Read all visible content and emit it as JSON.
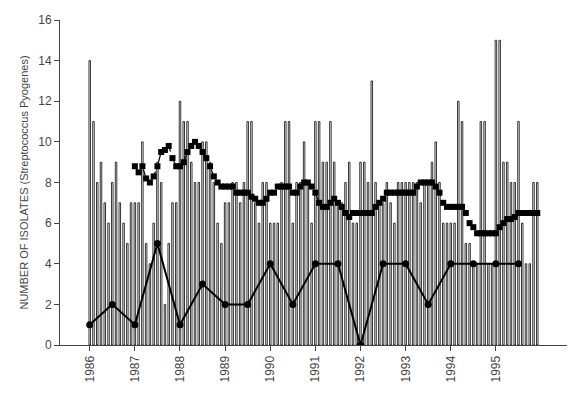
{
  "chart_data": {
    "type": "bar",
    "ylabel": "NUMBER OF ISOLATES (Streptococcus Pyogenes)",
    "categories": [
      "1986",
      null,
      null,
      null,
      null,
      null,
      null,
      null,
      null,
      null,
      null,
      null,
      "1987",
      null,
      null,
      null,
      null,
      null,
      null,
      null,
      null,
      null,
      null,
      null,
      "1988",
      null,
      null,
      null,
      null,
      null,
      null,
      null,
      null,
      null,
      null,
      null,
      "1989",
      null,
      null,
      null,
      null,
      null,
      null,
      null,
      null,
      null,
      null,
      null,
      "1990",
      null,
      null,
      null,
      null,
      null,
      null,
      null,
      null,
      null,
      null,
      null,
      "1991",
      null,
      null,
      null,
      null,
      null,
      null,
      null,
      null,
      null,
      null,
      null,
      "1992",
      null,
      null,
      null,
      null,
      null,
      null,
      null,
      null,
      null,
      null,
      null,
      "1993",
      null,
      null,
      null,
      null,
      null,
      null,
      null,
      null,
      null,
      null,
      null,
      "1994",
      null,
      null,
      null,
      null,
      null,
      null,
      null,
      null,
      null,
      null,
      null,
      "1995",
      null,
      null,
      null,
      null,
      null,
      null,
      null,
      null,
      null,
      null,
      null
    ],
    "series": [
      {
        "type": "bar",
        "color": "white",
        "values": [
          14,
          11,
          8,
          9,
          7,
          6,
          8,
          9,
          7,
          6,
          5,
          7,
          7,
          7,
          10,
          5,
          4,
          6,
          9,
          8,
          2,
          5,
          7,
          7,
          12,
          11,
          11,
          9,
          8,
          8,
          10,
          10,
          9,
          8,
          6,
          5,
          7,
          7,
          8,
          8,
          7,
          8,
          11,
          11,
          7,
          6,
          8,
          8,
          6,
          6,
          6,
          8,
          11,
          11,
          6,
          8,
          8,
          10,
          8,
          6,
          11,
          11,
          9,
          9,
          11,
          9,
          7,
          7,
          8,
          9,
          6,
          6,
          9,
          9,
          8,
          13,
          8,
          7,
          7,
          8,
          7,
          6,
          8,
          8,
          8,
          8,
          8,
          8,
          7,
          8,
          8,
          9,
          10,
          8,
          6,
          6,
          6,
          6,
          12,
          11,
          5,
          5,
          4,
          4,
          11,
          11,
          4,
          4,
          15,
          15,
          9,
          9,
          8,
          8,
          11,
          6,
          4,
          4,
          8,
          8
        ]
      },
      {
        "type": "line",
        "color": "black",
        "line_style": "dashed",
        "marker": "square",
        "values": [
          null,
          null,
          null,
          null,
          null,
          null,
          null,
          null,
          null,
          null,
          null,
          null,
          8.8,
          8.5,
          8.8,
          8.2,
          8.0,
          8.3,
          8.8,
          9.5,
          9.6,
          9.8,
          9.2,
          8.8,
          8.8,
          9.0,
          9.5,
          9.8,
          10.0,
          9.8,
          9.5,
          9.2,
          8.8,
          8.3,
          8.0,
          7.8,
          7.8,
          7.8,
          7.8,
          7.5,
          7.5,
          7.5,
          7.5,
          7.3,
          7.2,
          7.0,
          7.0,
          7.2,
          7.5,
          7.5,
          7.8,
          7.8,
          7.8,
          7.8,
          7.5,
          7.5,
          7.8,
          8.0,
          8.0,
          7.8,
          7.5,
          7.0,
          6.8,
          6.8,
          7.0,
          7.2,
          7.0,
          6.8,
          6.5,
          6.3,
          6.5,
          6.5,
          6.5,
          6.5,
          6.5,
          6.5,
          6.8,
          7.0,
          7.2,
          7.5,
          7.5,
          7.5,
          7.5,
          7.5,
          7.5,
          7.5,
          7.5,
          7.8,
          8.0,
          8.0,
          8.0,
          8.0,
          7.8,
          7.5,
          7.0,
          6.8,
          6.8,
          6.8,
          6.8,
          6.8,
          6.5,
          6.0,
          5.8,
          5.5,
          5.5,
          5.5,
          5.5,
          5.5,
          5.5,
          5.8,
          6.0,
          6.2,
          6.2,
          6.3,
          6.5,
          6.5,
          6.5,
          6.5,
          6.5,
          6.5
        ]
      },
      {
        "type": "line",
        "color": "black",
        "line_style": "solid",
        "marker": "circle",
        "values": [
          1,
          null,
          null,
          null,
          null,
          null,
          2,
          null,
          null,
          null,
          null,
          null,
          1,
          null,
          null,
          null,
          null,
          null,
          5,
          null,
          null,
          null,
          null,
          null,
          1,
          null,
          null,
          null,
          null,
          null,
          3,
          null,
          null,
          null,
          null,
          null,
          2,
          null,
          null,
          null,
          null,
          null,
          2,
          null,
          null,
          null,
          null,
          null,
          4,
          null,
          null,
          null,
          null,
          null,
          2,
          null,
          null,
          null,
          null,
          null,
          4,
          null,
          null,
          null,
          null,
          null,
          4,
          null,
          null,
          null,
          null,
          null,
          0,
          null,
          null,
          null,
          null,
          null,
          4,
          null,
          null,
          null,
          null,
          null,
          4,
          null,
          null,
          null,
          null,
          null,
          2,
          null,
          null,
          null,
          null,
          null,
          4,
          null,
          null,
          null,
          null,
          null,
          4,
          null,
          null,
          null,
          null,
          null,
          4,
          null,
          null,
          null,
          null,
          null,
          4,
          null,
          null,
          null,
          null,
          null
        ]
      }
    ],
    "ylim": [
      0,
      16
    ],
    "yticks": [
      0,
      2,
      4,
      6,
      8,
      10,
      12,
      14,
      16
    ],
    "grid": false
  }
}
